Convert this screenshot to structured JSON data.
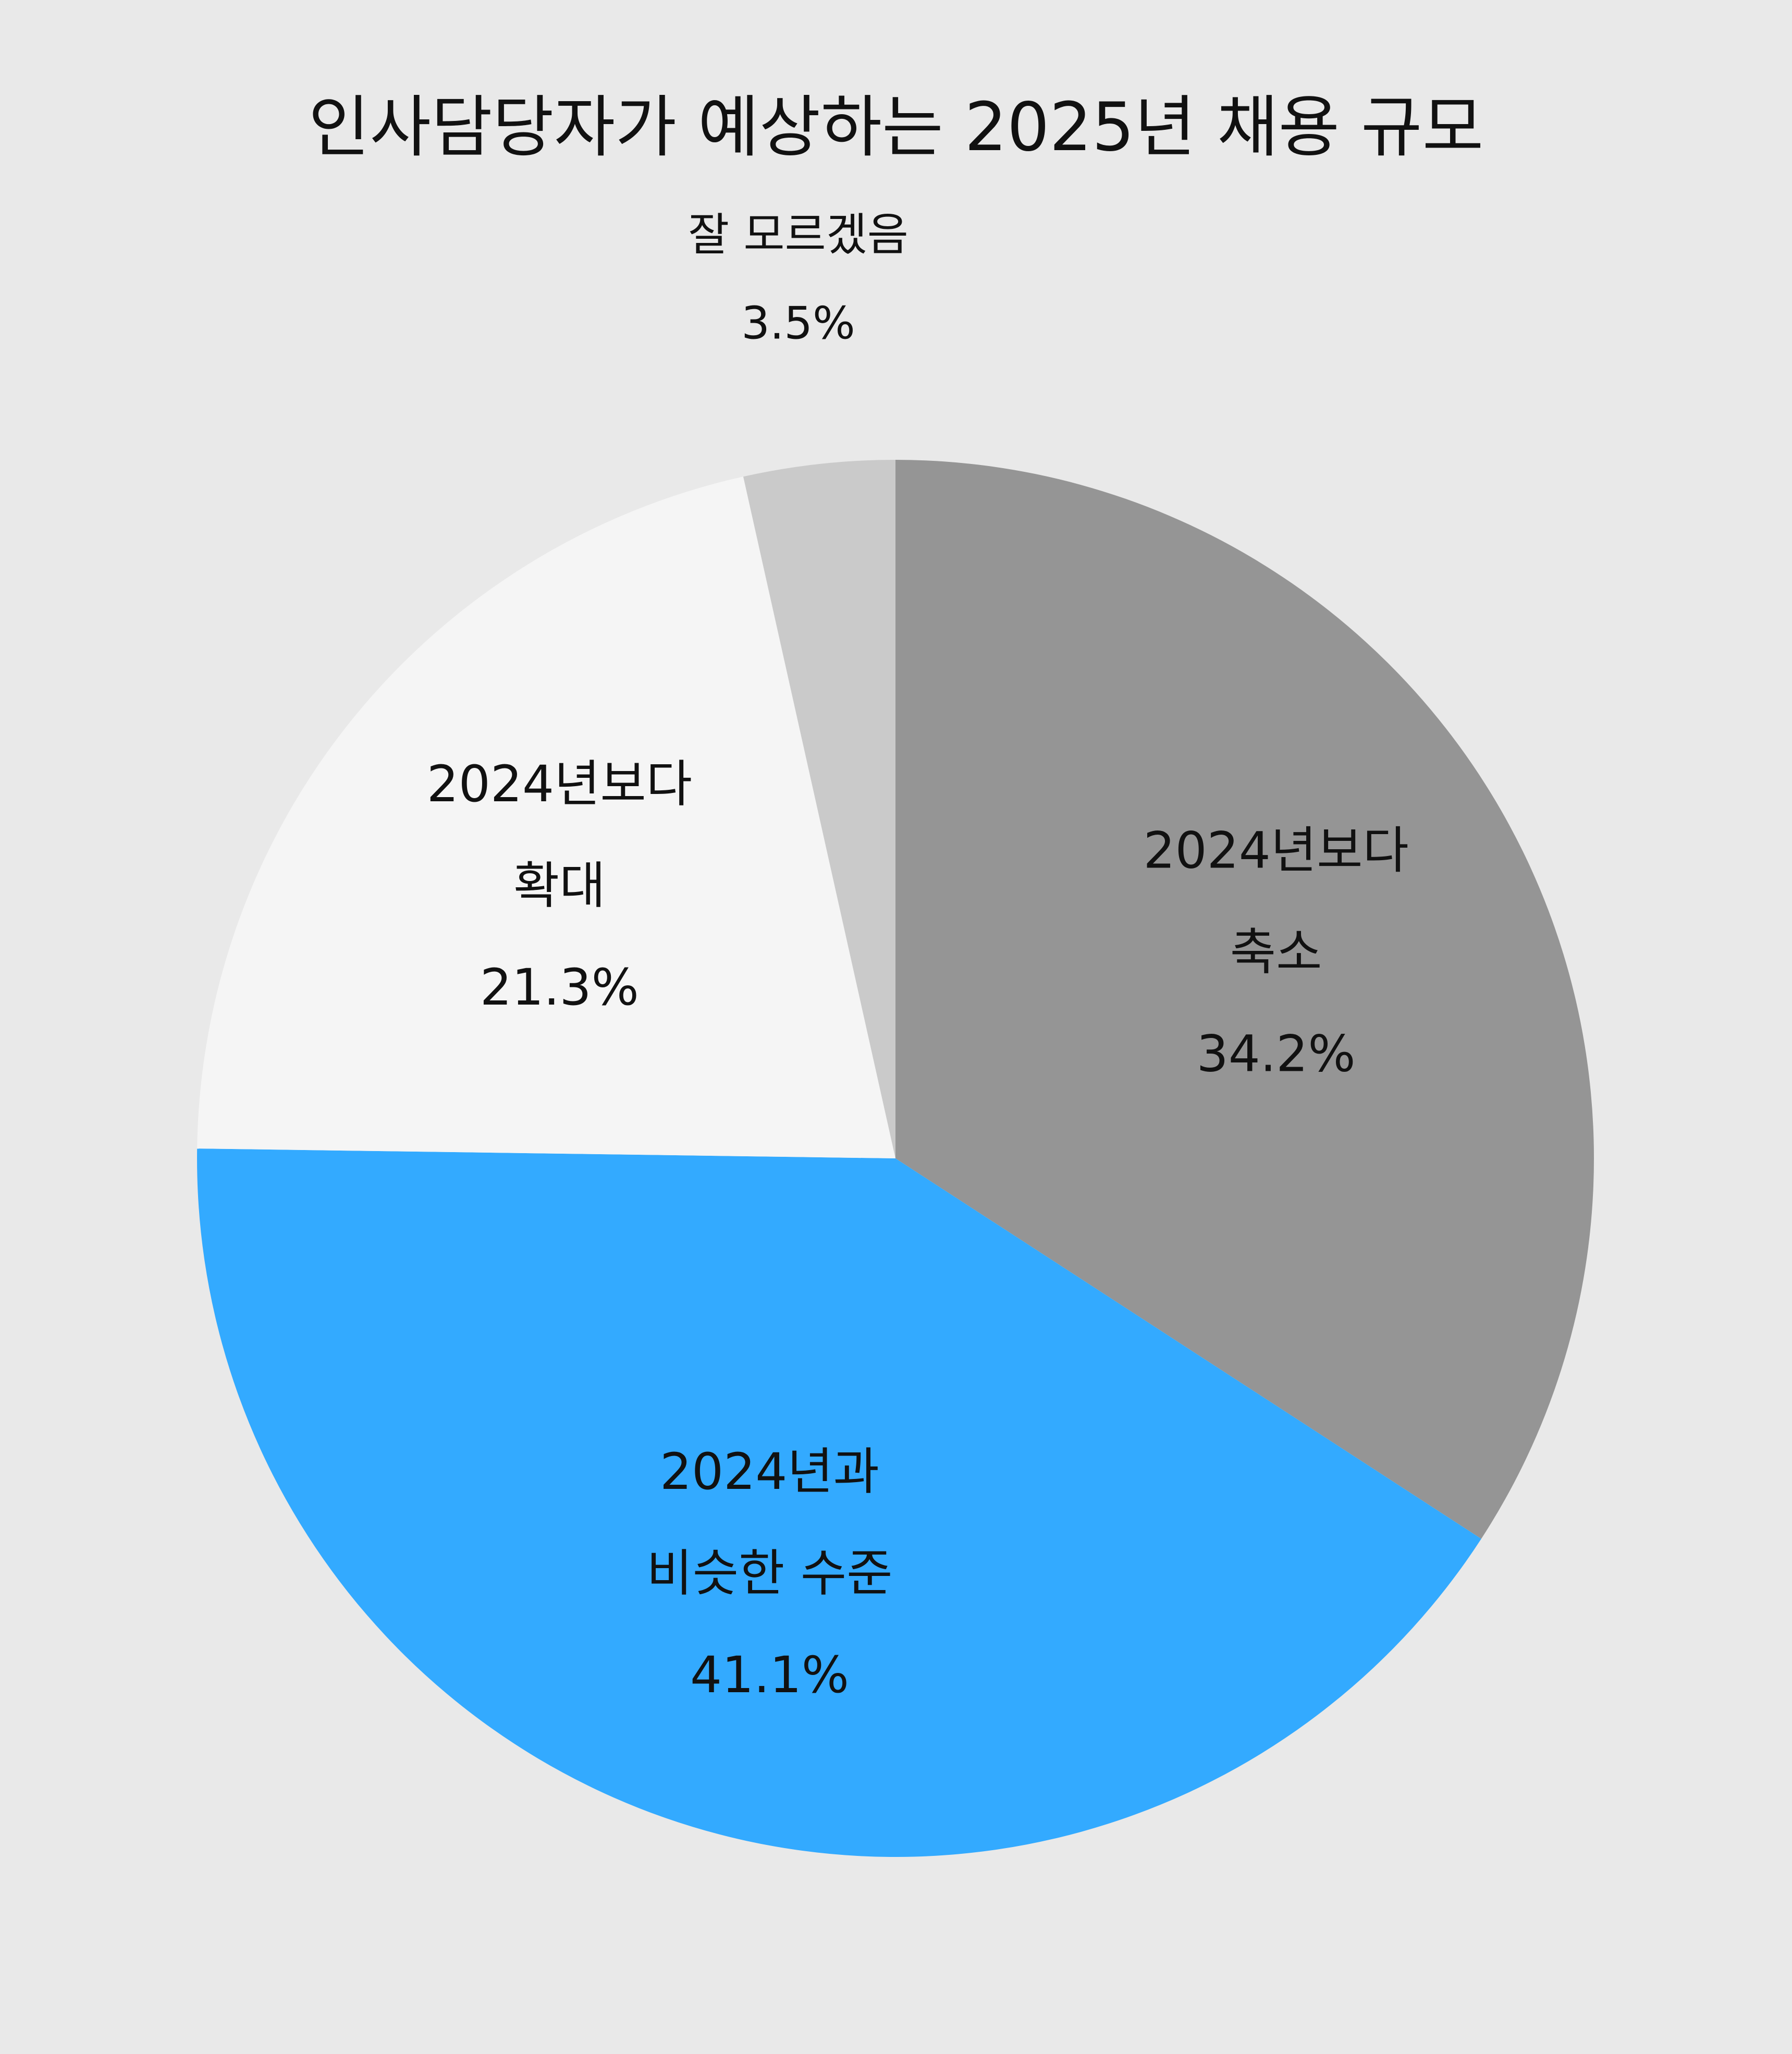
{
  "chart_data": {
    "type": "pie",
    "title": "인사담당자가 예상하는 2025년 채용 규모",
    "start": "12 o'clock",
    "direction": "clockwise",
    "slices": [
      {
        "label_lines": [
          "2024년보다",
          "축소"
        ],
        "value": 34.2,
        "value_label": "34.2%",
        "color": "#959595"
      },
      {
        "label_lines": [
          "2024년과",
          "비슷한 수준"
        ],
        "value": 41.1,
        "value_label": "41.1%",
        "color": "#33aaff"
      },
      {
        "label_lines": [
          "2024년보다",
          "확대"
        ],
        "value": 21.3,
        "value_label": "21.3%",
        "color": "#f5f5f5"
      },
      {
        "label_lines": [
          "잘 모르겠음"
        ],
        "value": 3.5,
        "value_label": "3.5%",
        "color": "#cacaca"
      }
    ]
  }
}
